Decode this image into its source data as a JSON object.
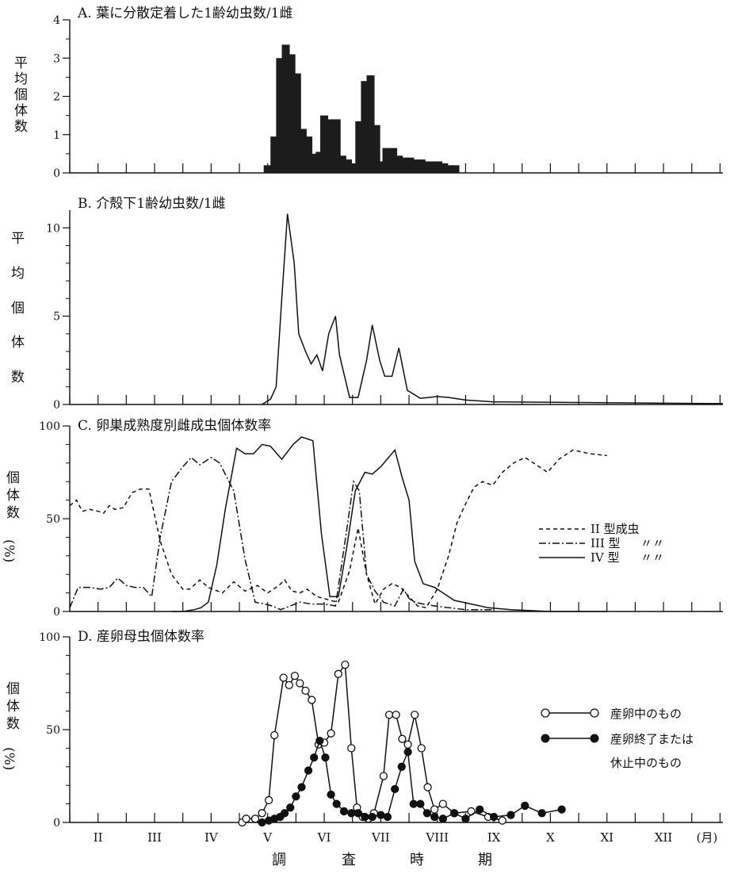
{
  "figure": {
    "x_axis_title_chars": [
      "調",
      "査",
      "時",
      "期"
    ],
    "month_labels": [
      "II",
      "III",
      "IV",
      "V",
      "VI",
      "VII",
      "VIII",
      "IX",
      "X",
      "XI",
      "XII",
      "(月)"
    ],
    "colors": {
      "ink": "#111111",
      "bar_fill": "#1c1c1c"
    }
  },
  "chart_data": [
    {
      "id": "A",
      "type": "bar",
      "title": "A. 葉に分散定着した1齢幼虫数/1雌",
      "ylabel": "平均個体数",
      "ylim": [
        0,
        4
      ],
      "yticks": [
        0,
        1,
        2,
        3,
        4
      ],
      "x_unit": "month",
      "xlim": [
        1.5,
        13.05
      ],
      "grid": false,
      "values": [
        [
          5.0,
          0.2
        ],
        [
          5.12,
          0.95
        ],
        [
          5.22,
          3.0
        ],
        [
          5.32,
          3.35
        ],
        [
          5.42,
          3.1
        ],
        [
          5.52,
          2.6
        ],
        [
          5.62,
          1.15
        ],
        [
          5.72,
          0.95
        ],
        [
          5.82,
          0.5
        ],
        [
          5.92,
          0.55
        ],
        [
          6.0,
          1.5
        ],
        [
          6.12,
          1.4
        ],
        [
          6.22,
          1.4
        ],
        [
          6.32,
          0.45
        ],
        [
          6.42,
          0.35
        ],
        [
          6.52,
          0.25
        ],
        [
          6.62,
          1.35
        ],
        [
          6.72,
          2.4
        ],
        [
          6.82,
          2.55
        ],
        [
          6.92,
          1.25
        ],
        [
          7.0,
          0.3
        ],
        [
          7.1,
          0.65
        ],
        [
          7.22,
          0.65
        ],
        [
          7.32,
          0.45
        ],
        [
          7.42,
          0.4
        ],
        [
          7.52,
          0.4
        ],
        [
          7.62,
          0.35
        ],
        [
          7.72,
          0.35
        ],
        [
          7.82,
          0.3
        ],
        [
          7.92,
          0.3
        ],
        [
          8.02,
          0.3
        ],
        [
          8.12,
          0.25
        ],
        [
          8.22,
          0.2
        ],
        [
          8.32,
          0.2
        ]
      ]
    },
    {
      "id": "B",
      "type": "line",
      "title": "B. 介殻下1齢幼虫数/1雌",
      "ylabel": "平均個体数",
      "ylim": [
        0,
        11
      ],
      "yticks": [
        0,
        5,
        10
      ],
      "xlim": [
        1.5,
        13.05
      ],
      "grid": false,
      "series": [
        {
          "points": [
            [
              4.9,
              0.0
            ],
            [
              5.05,
              0.3
            ],
            [
              5.15,
              1.0
            ],
            [
              5.25,
              6.0
            ],
            [
              5.35,
              10.8
            ],
            [
              5.47,
              8.0
            ],
            [
              5.55,
              4.0
            ],
            [
              5.67,
              3.0
            ],
            [
              5.77,
              2.3
            ],
            [
              5.87,
              2.8
            ],
            [
              5.97,
              1.9
            ],
            [
              6.08,
              4.0
            ],
            [
              6.2,
              5.0
            ],
            [
              6.27,
              2.8
            ],
            [
              6.45,
              0.4
            ],
            [
              6.6,
              0.4
            ],
            [
              6.75,
              2.5
            ],
            [
              6.85,
              4.5
            ],
            [
              6.98,
              2.5
            ],
            [
              7.07,
              1.6
            ],
            [
              7.2,
              1.6
            ],
            [
              7.32,
              3.2
            ],
            [
              7.47,
              0.8
            ],
            [
              7.7,
              0.35
            ],
            [
              8.0,
              0.45
            ],
            [
              8.2,
              0.4
            ],
            [
              8.5,
              0.25
            ],
            [
              9.0,
              0.15
            ],
            [
              13.05,
              0.05
            ]
          ]
        }
      ]
    },
    {
      "id": "C",
      "type": "line",
      "title": "C. 卵巣成熟度別雌成虫個体数率",
      "ylabel": "個体数(%)",
      "ylim": [
        0,
        100
      ],
      "yticks": [
        0,
        50,
        100
      ],
      "xlim": [
        1.5,
        13.05
      ],
      "legend_position": "right",
      "grid": false,
      "series": [
        {
          "name": "II 型成虫",
          "dash": "dashed",
          "points": [
            [
              1.5,
              57
            ],
            [
              1.62,
              60
            ],
            [
              1.72,
              54
            ],
            [
              1.85,
              55
            ],
            [
              2.0,
              54
            ],
            [
              2.1,
              53
            ],
            [
              2.2,
              57
            ],
            [
              2.3,
              55
            ],
            [
              2.45,
              56
            ],
            [
              2.6,
              64
            ],
            [
              2.75,
              66
            ],
            [
              2.9,
              66
            ],
            [
              3.0,
              52
            ],
            [
              3.1,
              38
            ],
            [
              3.3,
              20
            ],
            [
              3.5,
              12
            ],
            [
              3.62,
              12
            ],
            [
              3.8,
              17
            ],
            [
              3.95,
              13
            ],
            [
              4.2,
              10
            ],
            [
              4.4,
              16
            ],
            [
              4.6,
              11
            ],
            [
              4.82,
              14
            ],
            [
              5.0,
              10
            ],
            [
              5.2,
              14
            ],
            [
              5.3,
              17
            ],
            [
              5.43,
              11
            ],
            [
              5.57,
              10
            ],
            [
              5.7,
              12
            ],
            [
              5.87,
              8
            ],
            [
              6.0,
              7
            ],
            [
              6.1,
              6
            ],
            [
              6.25,
              5
            ],
            [
              6.45,
              22
            ],
            [
              6.6,
              45
            ],
            [
              6.75,
              20
            ],
            [
              6.9,
              4
            ],
            [
              7.05,
              12
            ],
            [
              7.2,
              15
            ],
            [
              7.35,
              13
            ],
            [
              7.5,
              8
            ],
            [
              7.65,
              3
            ],
            [
              7.8,
              2
            ],
            [
              8.0,
              12
            ],
            [
              8.2,
              30
            ],
            [
              8.35,
              48
            ],
            [
              8.5,
              58
            ],
            [
              8.65,
              67
            ],
            [
              8.8,
              70
            ],
            [
              8.98,
              68
            ],
            [
              9.15,
              75
            ],
            [
              9.35,
              80
            ],
            [
              9.55,
              83
            ],
            [
              9.75,
              79
            ],
            [
              9.95,
              75
            ],
            [
              10.15,
              82
            ],
            [
              10.4,
              87
            ],
            [
              10.7,
              85
            ],
            [
              11.0,
              84
            ]
          ]
        },
        {
          "name": "III 型",
          "dash": "dashdot",
          "points": [
            [
              1.5,
              2
            ],
            [
              1.65,
              13
            ],
            [
              1.85,
              13
            ],
            [
              2.05,
              12
            ],
            [
              2.2,
              13
            ],
            [
              2.35,
              18
            ],
            [
              2.5,
              14
            ],
            [
              2.65,
              13
            ],
            [
              2.8,
              13
            ],
            [
              2.95,
              8
            ],
            [
              3.1,
              40
            ],
            [
              3.3,
              70
            ],
            [
              3.5,
              78
            ],
            [
              3.65,
              83
            ],
            [
              3.8,
              79
            ],
            [
              4.0,
              83
            ],
            [
              4.15,
              80
            ],
            [
              4.4,
              65
            ],
            [
              4.6,
              28
            ],
            [
              4.78,
              5
            ],
            [
              4.95,
              4
            ],
            [
              5.08,
              3
            ],
            [
              5.23,
              1
            ],
            [
              5.4,
              3
            ],
            [
              5.57,
              5
            ],
            [
              5.78,
              4
            ],
            [
              6.0,
              4
            ],
            [
              6.2,
              3
            ],
            [
              6.38,
              40
            ],
            [
              6.52,
              70
            ],
            [
              6.62,
              65
            ],
            [
              6.75,
              20
            ],
            [
              6.9,
              11
            ],
            [
              7.05,
              5
            ],
            [
              7.25,
              3
            ],
            [
              7.4,
              12
            ],
            [
              7.5,
              7
            ],
            [
              7.6,
              5
            ],
            [
              7.75,
              4
            ],
            [
              7.95,
              3
            ],
            [
              8.2,
              2
            ],
            [
              8.5,
              1
            ],
            [
              8.8,
              1
            ],
            [
              9.0,
              1
            ]
          ]
        },
        {
          "name": "IV 型",
          "dash": "solid",
          "points": [
            [
              3.3,
              0
            ],
            [
              3.5,
              0
            ],
            [
              3.7,
              1
            ],
            [
              3.82,
              2
            ],
            [
              3.95,
              5
            ],
            [
              4.1,
              25
            ],
            [
              4.25,
              55
            ],
            [
              4.45,
              88
            ],
            [
              4.6,
              85
            ],
            [
              4.75,
              85
            ],
            [
              4.9,
              90
            ],
            [
              5.05,
              89
            ],
            [
              5.25,
              82
            ],
            [
              5.45,
              90
            ],
            [
              5.6,
              94
            ],
            [
              5.8,
              92
            ],
            [
              5.95,
              42
            ],
            [
              6.1,
              8
            ],
            [
              6.25,
              8
            ],
            [
              6.4,
              35
            ],
            [
              6.55,
              65
            ],
            [
              6.72,
              75
            ],
            [
              6.85,
              74
            ],
            [
              7.0,
              78
            ],
            [
              7.25,
              87
            ],
            [
              7.38,
              72
            ],
            [
              7.5,
              60
            ],
            [
              7.6,
              27
            ],
            [
              7.75,
              15
            ],
            [
              7.95,
              13
            ],
            [
              8.1,
              10
            ],
            [
              8.3,
              6
            ],
            [
              8.6,
              4
            ],
            [
              8.9,
              2
            ],
            [
              9.3,
              1
            ],
            [
              10.0,
              0
            ],
            [
              11.0,
              0
            ]
          ]
        }
      ]
    },
    {
      "id": "D",
      "type": "line",
      "title": "D. 産卵母虫個体数率",
      "ylabel": "個体数(%)",
      "ylim": [
        0,
        100
      ],
      "yticks": [
        0,
        50,
        100
      ],
      "xlim": [
        1.5,
        13.05
      ],
      "legend_position": "right",
      "grid": false,
      "series": [
        {
          "name": "産卵中のもの",
          "marker": "open-circle",
          "points": [
            [
              4.55,
              0
            ],
            [
              4.62,
              2
            ],
            [
              4.78,
              2
            ],
            [
              4.9,
              5
            ],
            [
              5.02,
              12
            ],
            [
              5.12,
              47
            ],
            [
              5.28,
              78
            ],
            [
              5.38,
              74
            ],
            [
              5.48,
              79
            ],
            [
              5.57,
              75
            ],
            [
              5.67,
              71
            ],
            [
              5.78,
              66
            ],
            [
              5.9,
              42
            ],
            [
              6.0,
              43
            ],
            [
              6.12,
              48
            ],
            [
              6.25,
              80
            ],
            [
              6.37,
              85
            ],
            [
              6.48,
              40
            ],
            [
              6.58,
              8
            ],
            [
              6.68,
              3
            ],
            [
              6.78,
              2
            ],
            [
              6.88,
              5
            ],
            [
              7.05,
              25
            ],
            [
              7.15,
              58
            ],
            [
              7.27,
              58
            ],
            [
              7.38,
              45
            ],
            [
              7.48,
              42
            ],
            [
              7.6,
              58
            ],
            [
              7.72,
              40
            ],
            [
              7.83,
              19
            ],
            [
              7.95,
              7
            ],
            [
              8.1,
              10
            ],
            [
              8.3,
              5
            ],
            [
              8.6,
              6
            ],
            [
              8.9,
              3
            ],
            [
              9.15,
              1
            ]
          ]
        },
        {
          "name": "産卵終了または休止中のもの",
          "marker": "filled-circle",
          "points": [
            [
              4.9,
              0
            ],
            [
              5.02,
              1
            ],
            [
              5.12,
              2
            ],
            [
              5.22,
              3
            ],
            [
              5.3,
              5
            ],
            [
              5.4,
              8
            ],
            [
              5.5,
              14
            ],
            [
              5.6,
              19
            ],
            [
              5.72,
              28
            ],
            [
              5.82,
              35
            ],
            [
              5.92,
              44
            ],
            [
              6.02,
              35
            ],
            [
              6.12,
              15
            ],
            [
              6.22,
              10
            ],
            [
              6.35,
              6
            ],
            [
              6.48,
              5
            ],
            [
              6.6,
              5
            ],
            [
              6.72,
              3
            ],
            [
              6.85,
              3
            ],
            [
              7.0,
              4
            ],
            [
              7.12,
              3
            ],
            [
              7.25,
              18
            ],
            [
              7.37,
              30
            ],
            [
              7.48,
              38
            ],
            [
              7.58,
              10
            ],
            [
              7.7,
              10
            ],
            [
              7.82,
              5
            ],
            [
              7.95,
              3
            ],
            [
              8.1,
              2
            ],
            [
              8.3,
              5
            ],
            [
              8.5,
              2
            ],
            [
              8.75,
              7
            ],
            [
              9.0,
              3
            ],
            [
              9.3,
              4
            ],
            [
              9.55,
              9
            ],
            [
              9.85,
              5
            ],
            [
              10.2,
              7
            ]
          ]
        }
      ]
    }
  ]
}
